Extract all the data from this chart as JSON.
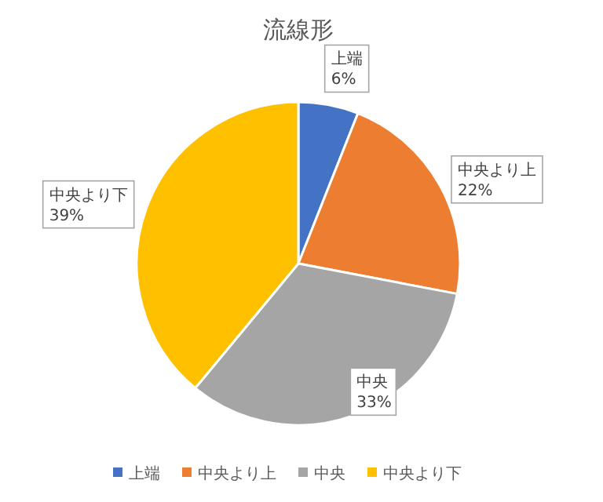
{
  "chart_data": {
    "type": "pie",
    "title": "流線形",
    "categories": [
      "上端",
      "中央より上",
      "中央",
      "中央より下"
    ],
    "values": [
      6,
      22,
      33,
      39
    ],
    "value_labels": [
      "6%",
      "22%",
      "33%",
      "39%"
    ],
    "colors": [
      "#4472c4",
      "#ed7d31",
      "#a5a5a5",
      "#ffc000"
    ],
    "legend": "bottom"
  }
}
